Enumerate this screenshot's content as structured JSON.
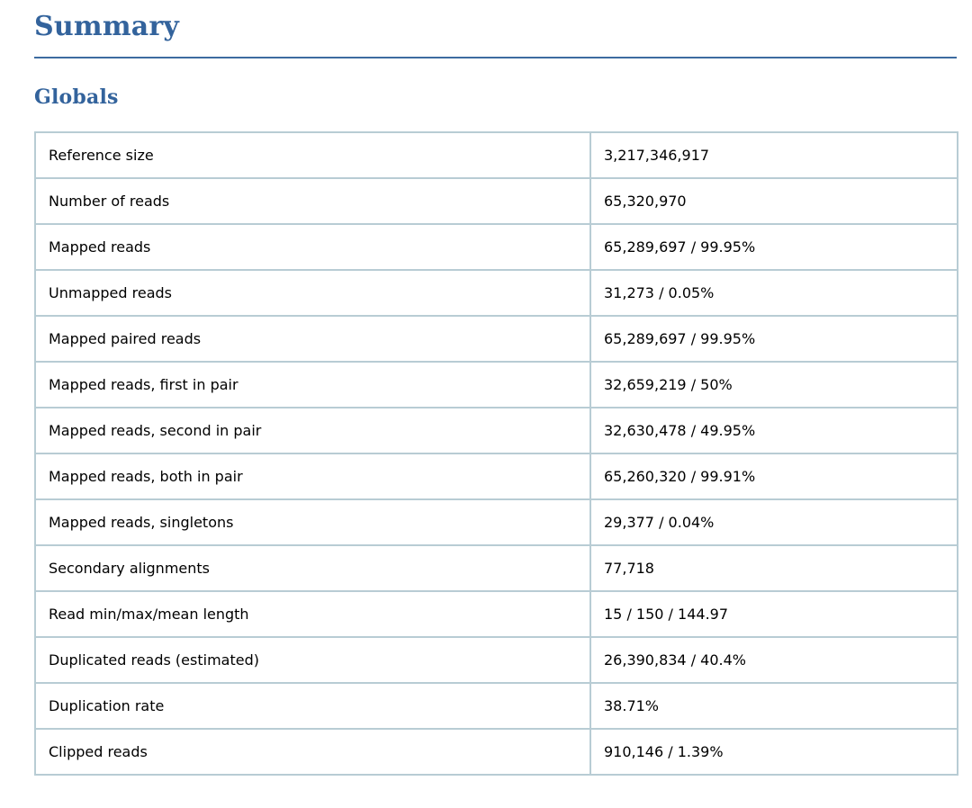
{
  "page": {
    "title": "Summary",
    "section_heading": "Globals"
  },
  "colors": {
    "heading_blue": "#33639C",
    "rule_blue": "#3D6BA0",
    "table_border": "#B8CCD4",
    "text": "#000000",
    "background": "#FFFFFF"
  },
  "globals_table": {
    "rows": [
      {
        "label": "Reference size",
        "value": "3,217,346,917"
      },
      {
        "label": "Number of reads",
        "value": "65,320,970"
      },
      {
        "label": "Mapped reads",
        "value": "65,289,697 / 99.95%"
      },
      {
        "label": "Unmapped reads",
        "value": "31,273 / 0.05%"
      },
      {
        "label": "Mapped paired reads",
        "value": "65,289,697 / 99.95%"
      },
      {
        "label": "Mapped reads, first in pair",
        "value": "32,659,219 / 50%"
      },
      {
        "label": "Mapped reads, second in pair",
        "value": "32,630,478 / 49.95%"
      },
      {
        "label": "Mapped reads, both in pair",
        "value": "65,260,320 / 99.91%"
      },
      {
        "label": "Mapped reads, singletons",
        "value": "29,377 / 0.04%"
      },
      {
        "label": "Secondary alignments",
        "value": "77,718"
      },
      {
        "label": "Read min/max/mean length",
        "value": "15 / 150 / 144.97"
      },
      {
        "label": "Duplicated reads (estimated)",
        "value": "26,390,834 / 40.4%"
      },
      {
        "label": "Duplication rate",
        "value": "38.71%"
      },
      {
        "label": "Clipped reads",
        "value": "910,146 / 1.39%"
      }
    ]
  }
}
